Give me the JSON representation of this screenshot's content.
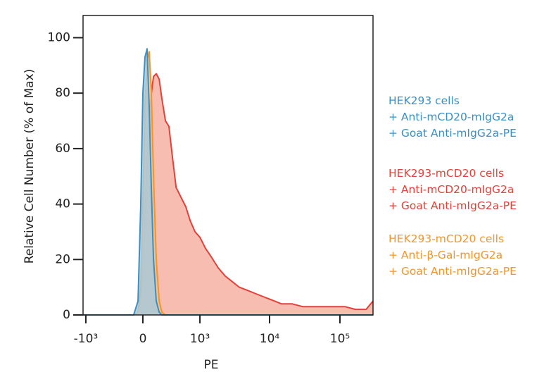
{
  "chart_data": {
    "type": "histogram_overlay",
    "x_label": "PE",
    "y_label": "Relative Cell Number (% of Max)",
    "xscale": "asinh",
    "asinh_width": 317,
    "xlim": [
      -1100,
      295000
    ],
    "ylim": [
      0,
      108
    ],
    "xticks": [
      {
        "value": -1000,
        "label": "-10³"
      },
      0,
      {
        "value": 1000,
        "label": "10³"
      },
      {
        "value": 10000,
        "label": "10⁴"
      },
      {
        "value": 100000,
        "label": "10⁵"
      }
    ],
    "yticks": [
      0,
      20,
      40,
      60,
      80,
      100
    ],
    "x": [
      -1100,
      -97,
      -51,
      -22,
      0,
      22,
      44,
      66,
      89,
      112,
      143,
      177,
      210,
      256,
      304,
      357,
      416,
      517,
      606,
      710,
      843,
      1000,
      1210,
      1465,
      1850,
      2340,
      2950,
      3700,
      4690,
      5900,
      7420,
      9350,
      11800,
      14800,
      21000,
      29500,
      41800,
      59300,
      83400,
      118000,
      166000,
      235000,
      295000
    ],
    "series": [
      {
        "name": [
          "HEK293-mCD20 cells",
          "+ Anti-mCD20-mIgG2a",
          "+ Goat Anti-mIgG2a-PE"
        ],
        "color": "#e5403a",
        "fill": "#f4b1a2",
        "values": [
          0,
          0,
          1,
          5,
          15,
          35,
          55,
          70,
          80,
          86,
          87,
          85,
          78,
          70,
          68,
          57,
          46,
          42,
          39,
          34,
          30,
          28,
          24,
          21,
          17,
          14,
          12,
          10,
          9,
          8,
          7,
          6,
          5,
          4,
          4,
          3,
          3,
          3,
          3,
          3,
          2,
          2,
          5
        ]
      },
      {
        "name": [
          "HEK293-mCD20 cells",
          "+ Anti-β-Gal-mIgG2a",
          "+ Goat Anti-mIgG2a-PE"
        ],
        "color": "#f0962c",
        "fill": "#f6c28c",
        "values": [
          0,
          0,
          1,
          10,
          40,
          75,
          92,
          95,
          80,
          50,
          20,
          5,
          1,
          0,
          0,
          0,
          0,
          0,
          0,
          0,
          0,
          0,
          0,
          0,
          0,
          0,
          0,
          0,
          0,
          0,
          0,
          0,
          0,
          0,
          0,
          0,
          0,
          0,
          0,
          0,
          0,
          0,
          0
        ]
      },
      {
        "name": [
          "HEK293 cells",
          "+ Anti-mCD20-mIgG2a",
          "+ Goat Anti-mIgG2a-PE"
        ],
        "color": "#3a8fc4",
        "fill": "#a9c9d9",
        "values": [
          0,
          0,
          5,
          40,
          80,
          93,
          96,
          75,
          45,
          20,
          5,
          1,
          0,
          0,
          0,
          0,
          0,
          0,
          0,
          0,
          0,
          0,
          0,
          0,
          0,
          0,
          0,
          0,
          0,
          0,
          0,
          0,
          0,
          0,
          0,
          0,
          0,
          0,
          0,
          0,
          0,
          0,
          0
        ]
      }
    ]
  }
}
